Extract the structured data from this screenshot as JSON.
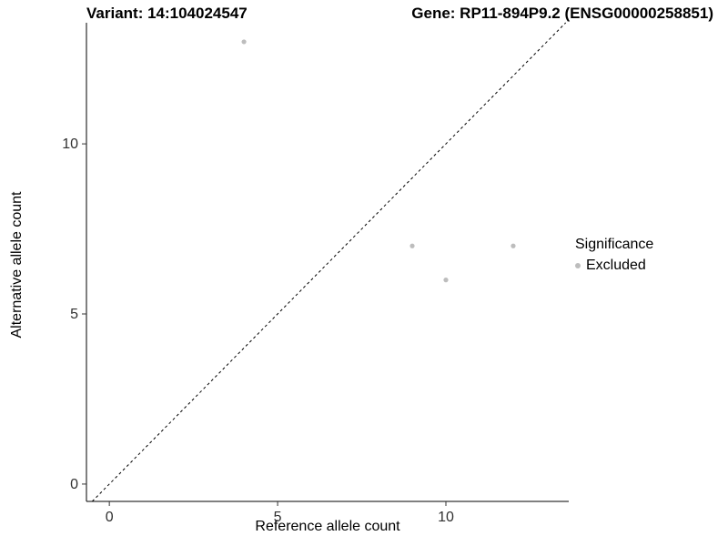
{
  "chart_data": {
    "type": "scatter",
    "titles": {
      "left": "Variant: 14:104024547",
      "right": "Gene: RP11-894P9.2 (ENSG00000258851)"
    },
    "xlabel": "Reference allele count",
    "ylabel": "Alternative allele count",
    "xlim": [
      -0.68,
      13.65
    ],
    "ylim": [
      -0.51,
      13.56
    ],
    "x_ticks": [
      0,
      5,
      10
    ],
    "y_ticks": [
      0,
      5,
      10
    ],
    "grid": false,
    "legend_position": "right",
    "legend": {
      "title": "Significance"
    },
    "series": [
      {
        "name": "Excluded",
        "color": "#bdbdbd",
        "points": [
          [
            4,
            13
          ],
          [
            9,
            7
          ],
          [
            12,
            7
          ],
          [
            10,
            6
          ]
        ]
      }
    ],
    "reference_line": {
      "type": "identity",
      "equation": "y = x",
      "style": "dashed",
      "color": "#000000"
    }
  }
}
